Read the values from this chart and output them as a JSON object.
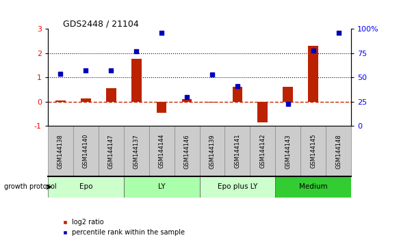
{
  "title": "GDS2448 / 21104",
  "samples": [
    "GSM144138",
    "GSM144140",
    "GSM144147",
    "GSM144137",
    "GSM144144",
    "GSM144146",
    "GSM144139",
    "GSM144141",
    "GSM144142",
    "GSM144143",
    "GSM144145",
    "GSM144148"
  ],
  "log2_ratio": [
    0.05,
    0.12,
    0.55,
    1.78,
    -0.45,
    0.1,
    -0.05,
    0.6,
    -0.85,
    0.6,
    2.3,
    0.0
  ],
  "pct_rank_left": [
    1.15,
    1.3,
    1.3,
    2.08,
    2.85,
    0.2,
    1.12,
    0.65,
    null,
    -0.1,
    2.1,
    2.85
  ],
  "groups": [
    {
      "label": "Epo",
      "start": 0,
      "end": 3,
      "color": "#ccffcc"
    },
    {
      "label": "LY",
      "start": 3,
      "end": 6,
      "color": "#aaffaa"
    },
    {
      "label": "Epo plus LY",
      "start": 6,
      "end": 9,
      "color": "#ccffcc"
    },
    {
      "label": "Medium",
      "start": 9,
      "end": 12,
      "color": "#33cc33"
    }
  ],
  "bar_color": "#bb2200",
  "dot_color": "#0000bb",
  "ylim_left": [
    -1,
    3
  ],
  "ylim_right": [
    0,
    100
  ],
  "hline_zero_color": "#cc2200",
  "hline_dotted_color": "#000000",
  "legend_red_label": "log2 ratio",
  "legend_blue_label": "percentile rank within the sample",
  "growth_protocol_label": "growth protocol"
}
